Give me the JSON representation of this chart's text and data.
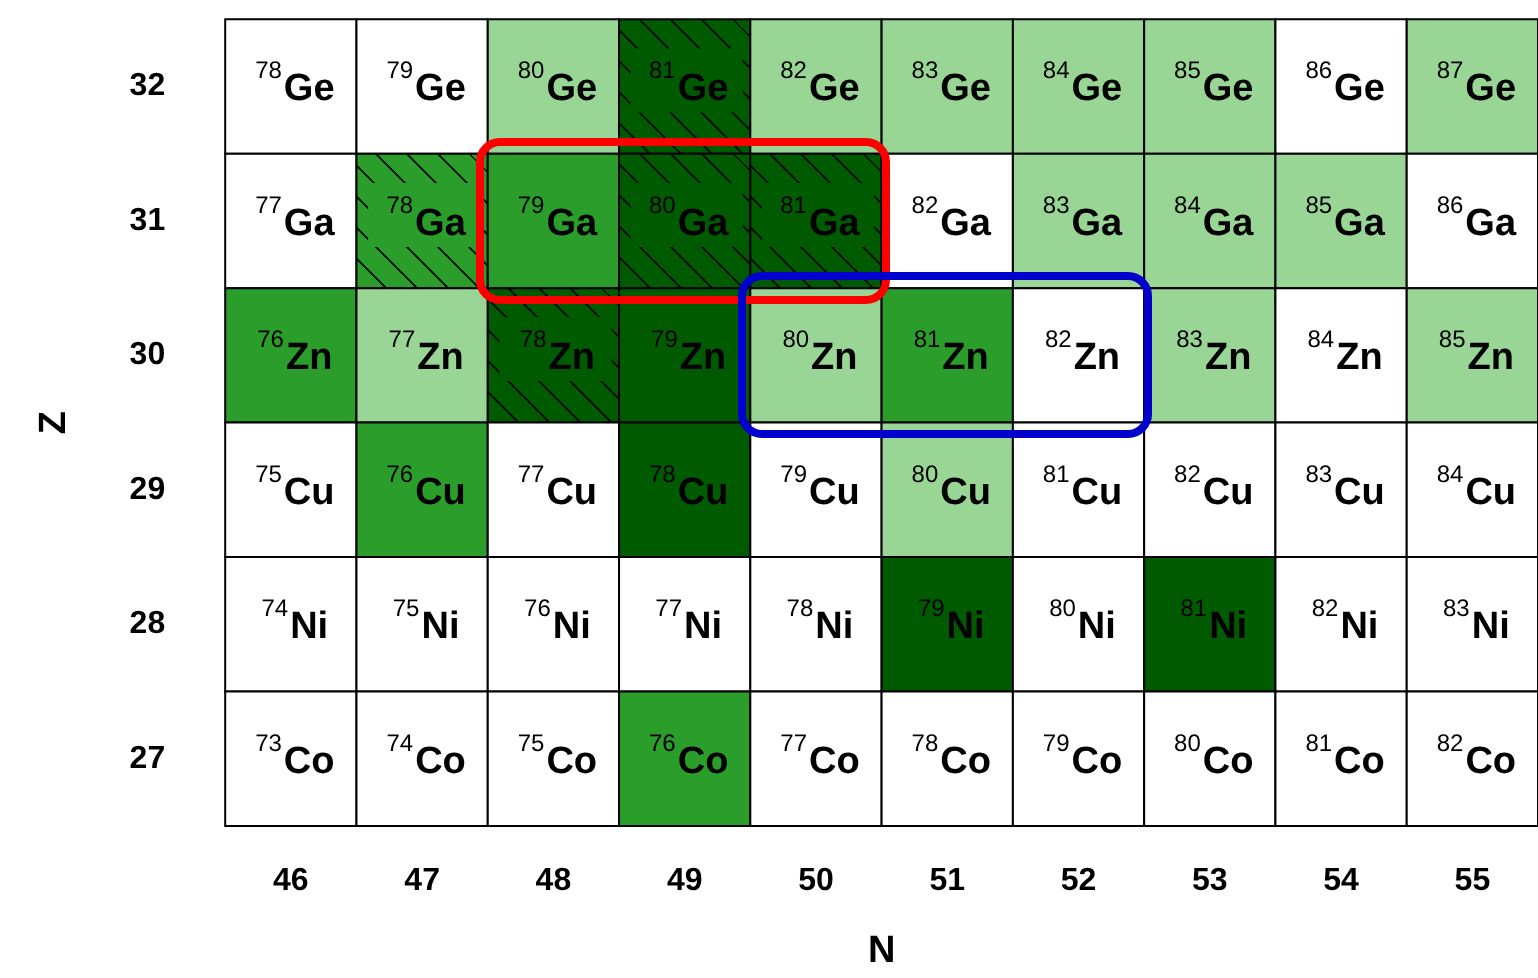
{
  "chart_data": {
    "type": "heatmap",
    "xlabel": "N",
    "ylabel": "Z",
    "categories": [
      "46",
      "47",
      "48",
      "49",
      "50",
      "51",
      "52",
      "53",
      "54",
      "55"
    ],
    "y_categories": [
      "32",
      "31",
      "30",
      "29",
      "28",
      "27"
    ],
    "cells": [
      [
        78,
        79,
        80,
        81,
        82,
        83,
        84,
        85,
        86,
        87
      ],
      [
        77,
        78,
        79,
        80,
        81,
        82,
        83,
        84,
        85,
        86
      ],
      [
        76,
        77,
        78,
        79,
        80,
        81,
        82,
        83,
        84,
        85
      ],
      [
        75,
        76,
        77,
        78,
        79,
        80,
        81,
        82,
        83,
        84
      ],
      [
        74,
        75,
        76,
        77,
        78,
        79,
        80,
        81,
        82,
        83
      ],
      [
        73,
        74,
        75,
        76,
        77,
        78,
        79,
        80,
        81,
        82
      ]
    ],
    "cell_labels": [
      [
        "$^{78}$Ge",
        "$^{79}$Ge",
        "$^{80}$Ge",
        "$^{81}$Ge",
        "$^{82}$Ge",
        "$^{83}$Ge",
        "$^{84}$Ge",
        "$^{85}$Ge",
        "$^{86}$Ge",
        "$^{87}$Ge"
      ],
      [
        "$^{77}$Ga",
        "$^{78}$Ga",
        "$^{79}$Ga",
        "$^{80}$Ga",
        "$^{81}$Ga",
        "$^{82}$Ga",
        "$^{83}$Ga",
        "$^{84}$Ga",
        "$^{85}$Ga",
        "$^{86}$Ga"
      ],
      [
        "$^{76}$Zn",
        "$^{77}$Zn",
        "$^{78}$Zn",
        "$^{79}$Zn",
        "$^{80}$Zn",
        "$^{81}$Zn",
        "$^{82}$Zn",
        "$^{83}$Zn",
        "$^{84}$Zn",
        "$^{85}$Zn"
      ],
      [
        "$^{75}$Cu",
        "$^{76}$Cu",
        "$^{77}$Cu",
        "$^{78}$Cu",
        "$^{79}$Cu",
        "$^{80}$Cu",
        "$^{81}$Cu",
        "$^{82}$Cu",
        "$^{83}$Cu",
        "$^{84}$Cu"
      ],
      [
        "$^{74}$Ni",
        "$^{75}$Ni",
        "$^{76}$Ni",
        "$^{77}$Ni",
        "$^{78}$Ni",
        "$^{79}$Ni",
        "$^{80}$Ni",
        "$^{81}$Ni",
        "$^{82}$Ni",
        "$^{83}$Ni"
      ],
      [
        "$^{73}$Co",
        "$^{74}$Co",
        "$^{75}$Co",
        "$^{76}$Co",
        "$^{77}$Co",
        "$^{78}$Co",
        "$^{79}$Co",
        "$^{80}$Co",
        "$^{81}$Co",
        "$^{82}$Co"
      ]
    ],
    "colors": [
      [
        "#ffffff",
        "#ffffff",
        "#99d595",
        "#005a00",
        "#99d595",
        "#99d595",
        "#99d595",
        "#99d595",
        "#ffffff",
        "#99d595"
      ],
      [
        "#ffffff",
        "#2a9d2a",
        "#2a9d2a",
        "#005a00",
        "#005a00",
        "#ffffff",
        "#99d595",
        "#99d595",
        "#99d595",
        "#ffffff"
      ],
      [
        "#2a9d2a",
        "#99d595",
        "#005a00",
        "#005a00",
        "#99d595",
        "#2a9d2a",
        "#ffffff",
        "#99d595",
        "#ffffff",
        "#99d595"
      ],
      [
        "#ffffff",
        "#2a9d2a",
        "#ffffff",
        "#005a00",
        "#ffffff",
        "#99d595",
        "#ffffff",
        "#ffffff",
        "#ffffff",
        "#ffffff"
      ],
      [
        "#ffffff",
        "#ffffff",
        "#ffffff",
        "#ffffff",
        "#ffffff",
        "#005a00",
        "#ffffff",
        "#005a00",
        "#ffffff",
        "#ffffff"
      ],
      [
        "#ffffff",
        "#ffffff",
        "#ffffff",
        "#2a9d2a",
        "#ffffff",
        "#ffffff",
        "#ffffff",
        "#ffffff",
        "#ffffff",
        "#ffffff"
      ]
    ]
  }
}
